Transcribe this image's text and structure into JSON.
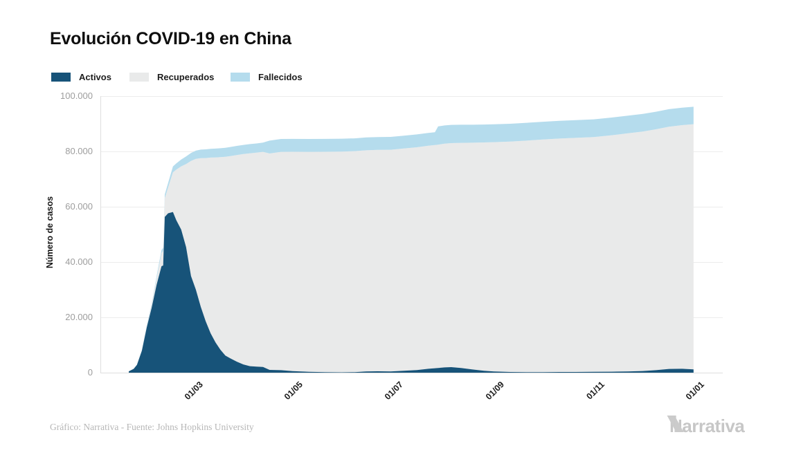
{
  "title": "Evolución COVID-19 en China",
  "legend": [
    {
      "label": "Activos",
      "color": "#175379"
    },
    {
      "label": "Recuperados",
      "color": "#e9eaea"
    },
    {
      "label": "Fallecidos",
      "color": "#b5dced"
    }
  ],
  "y_axis": {
    "title": "Número de casos",
    "tick_labels": [
      "0",
      "20.000",
      "40.000",
      "60.000",
      "80.000",
      "100.000"
    ],
    "tick_values": [
      0,
      20000,
      40000,
      60000,
      80000,
      100000
    ]
  },
  "x_axis": {
    "tick_labels": [
      "01/03",
      "01/05",
      "01/07",
      "01/09",
      "01/11",
      "01/01"
    ],
    "tick_days": [
      39,
      100,
      161,
      223,
      284,
      345
    ]
  },
  "footer": {
    "credit": "Gráfico: Narrativa - Fuente: Johns Hopkins University",
    "brand": "Narrativa"
  },
  "chart_data": {
    "type": "area",
    "stacked": true,
    "title": "Evolución COVID-19 en China",
    "xlabel": "",
    "ylabel": "Número de casos",
    "ylim": [
      0,
      100000
    ],
    "grid": "horizontal",
    "legend_position": "top-left",
    "x_start_date": "22/01/2020",
    "x_end_date": "01/01/2021",
    "x_tick_labels": [
      "01/03",
      "01/05",
      "01/07",
      "01/09",
      "01/11",
      "01/01"
    ],
    "dates": [
      "22/01",
      "25/01",
      "27/01",
      "30/01",
      "02/02",
      "05/02",
      "08/02",
      "11/02",
      "12/02",
      "13/02",
      "15/02",
      "18/02",
      "20/02",
      "23/02",
      "26/02",
      "29/02",
      "03/03",
      "06/03",
      "09/03",
      "12/03",
      "15/03",
      "18/03",
      "21/03",
      "24/03",
      "28/03",
      "01/04",
      "05/04",
      "09/04",
      "13/04",
      "17/04",
      "24/04",
      "01/05",
      "11/05",
      "21/05",
      "31/05",
      "08/06",
      "15/06",
      "22/06",
      "30/06",
      "08/07",
      "16/07",
      "23/07",
      "27/07",
      "29/07",
      "02/08",
      "06/08",
      "12/08",
      "19/08",
      "26/08",
      "01/09",
      "11/09",
      "21/09",
      "01/10",
      "11/10",
      "21/10",
      "01/11",
      "12/11",
      "22/11",
      "01/12",
      "09/12",
      "17/12",
      "25/12",
      "01/01"
    ],
    "days": [
      0,
      3,
      5,
      8,
      11,
      14,
      17,
      20,
      21,
      22,
      24,
      27,
      29,
      32,
      35,
      38,
      41,
      44,
      47,
      50,
      53,
      56,
      59,
      62,
      66,
      70,
      74,
      78,
      82,
      86,
      93,
      100,
      110,
      120,
      130,
      138,
      145,
      152,
      160,
      168,
      176,
      183,
      187,
      189,
      193,
      197,
      203,
      210,
      217,
      223,
      233,
      243,
      253,
      263,
      273,
      284,
      295,
      305,
      314,
      322,
      330,
      338,
      345
    ],
    "series": [
      {
        "name": "Activos",
        "color": "#175379",
        "values": [
          480,
          1380,
          2800,
          7890,
          16370,
          23500,
          31770,
          38500,
          38760,
          56330,
          57620,
          58100,
          55140,
          51740,
          45400,
          34930,
          30030,
          23790,
          18610,
          14260,
          10920,
          8280,
          6190,
          5190,
          3970,
          2980,
          2360,
          2170,
          2080,
          1000,
          900,
          580,
          300,
          180,
          130,
          190,
          440,
          500,
          460,
          700,
          950,
          1400,
          1600,
          1700,
          1900,
          2000,
          1700,
          1150,
          700,
          450,
          250,
          200,
          200,
          250,
          250,
          300,
          350,
          450,
          600,
          900,
          1350,
          1400,
          1200
        ]
      },
      {
        "name": "Recuperados",
        "color": "#e9eaea",
        "values": [
          28,
          40,
          60,
          170,
          470,
          890,
          2320,
          4740,
          5320,
          6730,
          9300,
          14350,
          18260,
          22860,
          30050,
          41630,
          47260,
          53790,
          59000,
          63510,
          66910,
          69640,
          71850,
          73120,
          74720,
          76060,
          76970,
          77370,
          77780,
          78250,
          78950,
          79300,
          79550,
          79700,
          79820,
          79900,
          79960,
          80050,
          80150,
          80350,
          80550,
          80650,
          80700,
          80750,
          80900,
          81000,
          81400,
          82000,
          82550,
          82900,
          83300,
          83700,
          84100,
          84400,
          84650,
          84900,
          85500,
          86100,
          86600,
          87100,
          87600,
          88100,
          88650
        ]
      },
      {
        "name": "Fallecidos",
        "color": "#b5dced",
        "values": [
          17,
          42,
          82,
          171,
          362,
          560,
          813,
          1113,
          1118,
          1380,
          1665,
          2120,
          2240,
          2445,
          2717,
          2870,
          2980,
          3070,
          3140,
          3180,
          3200,
          3230,
          3260,
          3280,
          3300,
          3320,
          3330,
          3340,
          3350,
          4640,
          4640,
          4640,
          4645,
          4645,
          4645,
          4645,
          4645,
          4645,
          4650,
          4650,
          4650,
          4650,
          4650,
          6600,
          6600,
          6600,
          6550,
          6500,
          6480,
          6450,
          6450,
          6450,
          6420,
          6420,
          6400,
          6400,
          6400,
          6400,
          6350,
          6350,
          6320,
          6300,
          6300
        ]
      }
    ]
  }
}
